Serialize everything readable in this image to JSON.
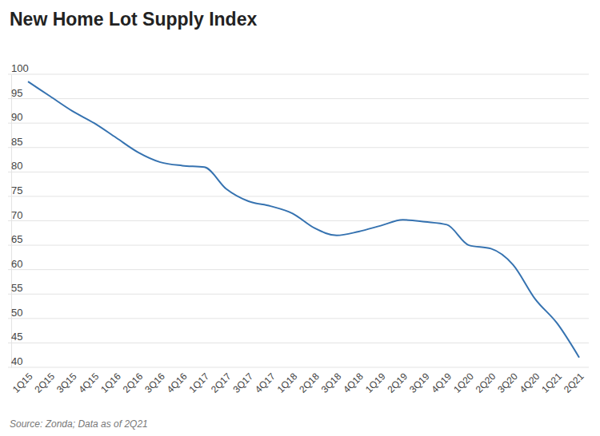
{
  "chart_data": {
    "type": "line",
    "title": "New Home Lot Supply Index",
    "source": "Source: Zonda; Data as of 2Q21",
    "categories": [
      "1Q15",
      "2Q15",
      "3Q15",
      "4Q15",
      "1Q16",
      "2Q16",
      "3Q16",
      "4Q16",
      "1Q17",
      "2Q17",
      "3Q17",
      "4Q17",
      "1Q18",
      "2Q18",
      "3Q18",
      "4Q18",
      "1Q19",
      "2Q19",
      "3Q19",
      "4Q19",
      "1Q20",
      "2Q20",
      "3Q20",
      "4Q20",
      "1Q21",
      "2Q21"
    ],
    "values": [
      98.5,
      95.5,
      92.5,
      90,
      87,
      84,
      82,
      81.3,
      81,
      76.5,
      74,
      73,
      71.5,
      68.5,
      67,
      67.8,
      69,
      70.2,
      69.8,
      69.2,
      65,
      64.3,
      61,
      54,
      49,
      42
    ],
    "color": "#3572b0",
    "ylim": [
      40,
      100
    ],
    "yticks": [
      40,
      45,
      50,
      55,
      60,
      65,
      70,
      75,
      80,
      85,
      90,
      95,
      100
    ],
    "grid": true
  }
}
